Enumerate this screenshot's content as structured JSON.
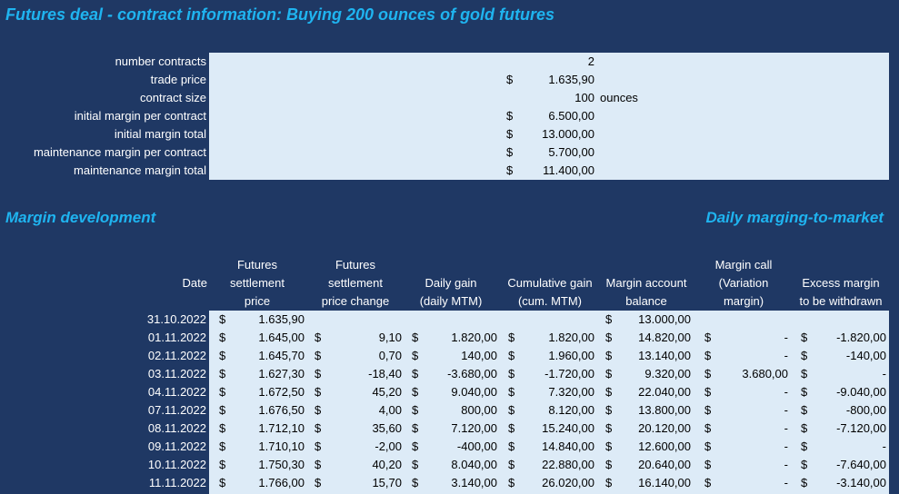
{
  "title": "Futures deal - contract information: Buying 200 ounces of gold futures",
  "contract_info": [
    {
      "label": "number contracts",
      "currency": "",
      "value": "2",
      "unit": ""
    },
    {
      "label": "trade price",
      "currency": "$",
      "value": "1.635,90",
      "unit": ""
    },
    {
      "label": "contract size",
      "currency": "",
      "value": "100",
      "unit": "ounces"
    },
    {
      "label": "initial margin per contract",
      "currency": "$",
      "value": "6.500,00",
      "unit": ""
    },
    {
      "label": "initial margin total",
      "currency": "$",
      "value": "13.000,00",
      "unit": ""
    },
    {
      "label": "maintenance margin per contract",
      "currency": "$",
      "value": "5.700,00",
      "unit": ""
    },
    {
      "label": "maintenance margin total",
      "currency": "$",
      "value": "11.400,00",
      "unit": ""
    }
  ],
  "sections": {
    "left": "Margin development",
    "right": "Daily marging-to-market"
  },
  "headers": {
    "date": [
      "Date"
    ],
    "settle": [
      "Futures",
      "settlement",
      "price"
    ],
    "change": [
      "Futures",
      "settlement",
      "price change"
    ],
    "gain": [
      "Daily gain",
      "(daily MTM)"
    ],
    "cum": [
      "Cumulative gain",
      "(cum. MTM)"
    ],
    "balance": [
      "Margin account",
      "balance"
    ],
    "call": [
      "Margin call",
      "(Variation",
      "margin)"
    ],
    "excess": [
      "Excess margin",
      "to be withdrawn"
    ]
  },
  "rows": [
    {
      "date": "31.10.2022",
      "settle": "1.635,90",
      "change": "",
      "gain": "",
      "cum": "",
      "balance": "13.000,00",
      "call": "",
      "excess": ""
    },
    {
      "date": "01.11.2022",
      "settle": "1.645,00",
      "change": "9,10",
      "gain": "1.820,00",
      "cum": "1.820,00",
      "balance": "14.820,00",
      "call": "-",
      "excess": "-1.820,00"
    },
    {
      "date": "02.11.2022",
      "settle": "1.645,70",
      "change": "0,70",
      "gain": "140,00",
      "cum": "1.960,00",
      "balance": "13.140,00",
      "call": "-",
      "excess": "-140,00"
    },
    {
      "date": "03.11.2022",
      "settle": "1.627,30",
      "change": "-18,40",
      "gain": "-3.680,00",
      "cum": "-1.720,00",
      "balance": "9.320,00",
      "call": "3.680,00",
      "excess": "-"
    },
    {
      "date": "04.11.2022",
      "settle": "1.672,50",
      "change": "45,20",
      "gain": "9.040,00",
      "cum": "7.320,00",
      "balance": "22.040,00",
      "call": "-",
      "excess": "-9.040,00"
    },
    {
      "date": "07.11.2022",
      "settle": "1.676,50",
      "change": "4,00",
      "gain": "800,00",
      "cum": "8.120,00",
      "balance": "13.800,00",
      "call": "-",
      "excess": "-800,00"
    },
    {
      "date": "08.11.2022",
      "settle": "1.712,10",
      "change": "35,60",
      "gain": "7.120,00",
      "cum": "15.240,00",
      "balance": "20.120,00",
      "call": "-",
      "excess": "-7.120,00"
    },
    {
      "date": "09.11.2022",
      "settle": "1.710,10",
      "change": "-2,00",
      "gain": "-400,00",
      "cum": "14.840,00",
      "balance": "12.600,00",
      "call": "-",
      "excess": "-"
    },
    {
      "date": "10.11.2022",
      "settle": "1.750,30",
      "change": "40,20",
      "gain": "8.040,00",
      "cum": "22.880,00",
      "balance": "20.640,00",
      "call": "-",
      "excess": "-7.640,00"
    },
    {
      "date": "11.11.2022",
      "settle": "1.766,00",
      "change": "15,70",
      "gain": "3.140,00",
      "cum": "26.020,00",
      "balance": "16.140,00",
      "call": "-",
      "excess": "-3.140,00"
    }
  ],
  "currency_symbol": "$",
  "colors": {
    "background": "#1f3864",
    "accent": "#1fb4f0",
    "cell_fill": "#ddebf7"
  }
}
